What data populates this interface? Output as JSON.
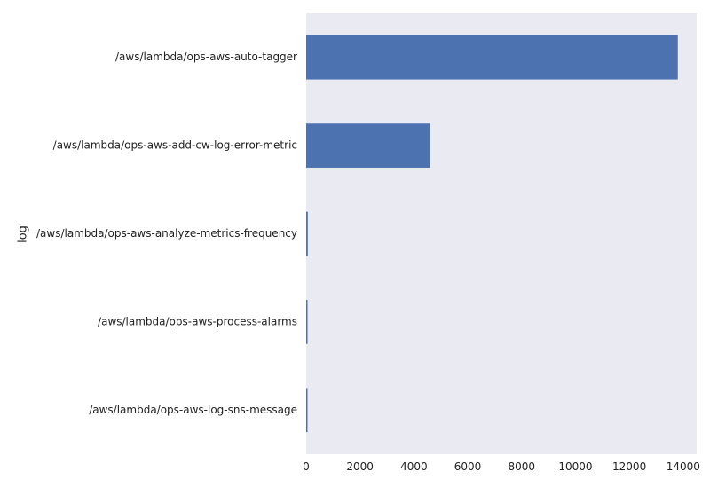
{
  "chart_data": {
    "type": "bar",
    "orientation": "horizontal",
    "categories": [
      "/aws/lambda/ops-aws-auto-tagger",
      "/aws/lambda/ops-aws-add-cw-log-error-metric",
      "/aws/lambda/ops-aws-analyze-metrics-frequency",
      "/aws/lambda/ops-aws-process-alarms",
      "/aws/lambda/ops-aws-log-sns-message"
    ],
    "values": [
      13800,
      4600,
      60,
      50,
      30
    ],
    "title": "",
    "xlabel": "",
    "ylabel": "log",
    "xlim": [
      0,
      14500
    ],
    "xticks": [
      "0",
      "2000",
      "4000",
      "6000",
      "8000",
      "10000",
      "12000",
      "14000"
    ],
    "grid": false,
    "legend": "none",
    "colors": {
      "bar": "#4c72b0",
      "plot_background": "#eaeaf2"
    }
  }
}
